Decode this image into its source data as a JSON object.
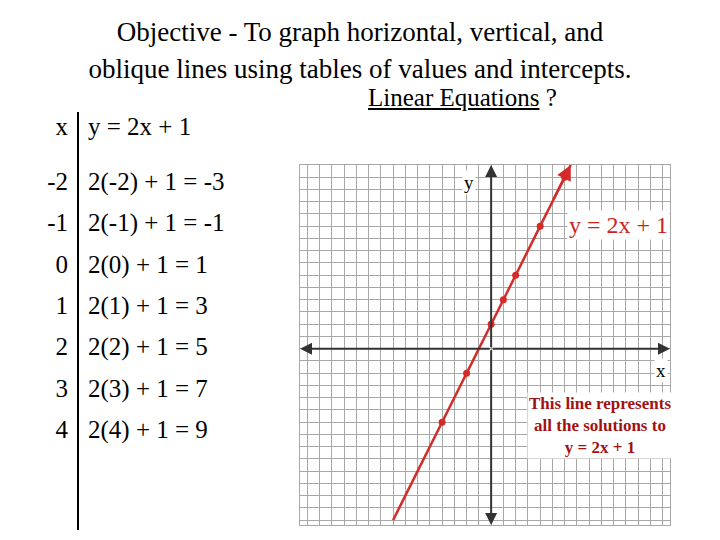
{
  "header": {
    "title_lines": [
      "Objective - To graph horizontal, vertical, and",
      "oblique lines using tables of values and intercepts."
    ],
    "subtitle": {
      "underlined": "Linear Equations",
      "rest": " ?"
    }
  },
  "table": {
    "header": [
      "x",
      "y = 2x + 1"
    ],
    "rows": [
      [
        "-2",
        "2(-2) + 1 = -3"
      ],
      [
        "-1",
        "2(-1) + 1 = -1"
      ],
      [
        "0",
        "2(0) + 1 = 1"
      ],
      [
        "1",
        "2(1) + 1 = 3"
      ],
      [
        "2",
        "2(2) + 1 = 5"
      ],
      [
        "3",
        "2(3) + 1 = 7"
      ],
      [
        "4",
        "2(4) + 1 = 9"
      ]
    ]
  },
  "chart_data": {
    "type": "line",
    "xlabel": "x",
    "ylabel": "y",
    "xlim": [
      -7.8,
      7.3
    ],
    "ylim": [
      -7.2,
      7.5
    ],
    "xticks": [
      -7.5,
      -7,
      -6.5,
      -6,
      -5.5,
      -5,
      -4.5,
      -4,
      -3.5,
      -3,
      -2.5,
      -2,
      -1.5,
      -1,
      -0.5,
      0,
      0.5,
      1,
      1.5,
      2,
      2.5,
      3,
      3.5,
      4,
      4.5,
      5,
      5.5,
      6,
      6.5,
      7
    ],
    "yticks": [
      -7,
      -6.5,
      -6,
      -5.5,
      -5,
      -4.5,
      -4,
      -3.5,
      -3,
      -2.5,
      -2,
      -1.5,
      -1,
      -0.5,
      0,
      0.5,
      1,
      1.5,
      2,
      2.5,
      3,
      3.5,
      4,
      4.5,
      5,
      5.5,
      6,
      6.5,
      7,
      7.5
    ],
    "grid": true,
    "tick_labels": false,
    "annotations": [
      [
        "y = 2x + 1"
      ],
      [
        "This line represents",
        "all the solutions to",
        "y = 2x + 1"
      ]
    ],
    "series": [
      {
        "type": "line",
        "color": "#d42a2a",
        "line_style": "solid",
        "x": [
          -4,
          3.25
        ],
        "values": [
          -7,
          7.5
        ]
      },
      {
        "type": "scatter",
        "color": "#d42a2a",
        "marker": "circle",
        "x": [
          -2,
          -1,
          0,
          0.5,
          1,
          2,
          3
        ],
        "values": [
          -3,
          -1,
          1,
          2,
          3,
          5,
          7
        ]
      }
    ]
  }
}
